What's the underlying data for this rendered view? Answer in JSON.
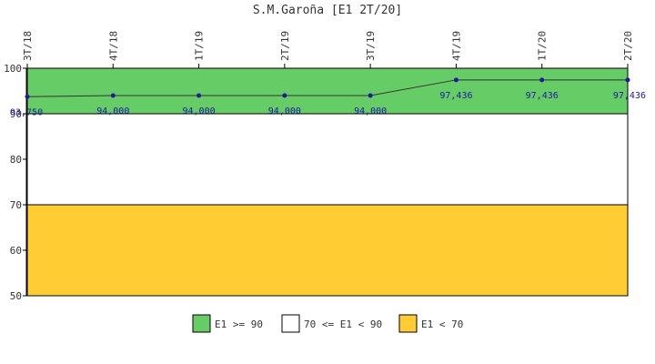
{
  "chart_data": {
    "type": "line",
    "title": "S.M.Garoña [E1 2T/20]",
    "xlabel": "",
    "ylabel": "",
    "ylim": [
      50,
      100
    ],
    "yticks": [
      50,
      60,
      70,
      80,
      90,
      100
    ],
    "categories": [
      "3T/18",
      "4T/18",
      "1T/19",
      "2T/19",
      "3T/19",
      "4T/19",
      "1T/20",
      "2T/20"
    ],
    "series": [
      {
        "values": [
          93.75,
          94.0,
          94.0,
          94.0,
          94.0,
          97.436,
          97.436,
          97.436
        ],
        "labels": [
          "93,750",
          "94,000",
          "94,000",
          "94,000",
          "94,000",
          "97,436",
          "97,436",
          "97,436"
        ],
        "color": "#1a1aa6"
      }
    ],
    "bands": [
      {
        "from": 90,
        "to": 100,
        "color": "#66cc66",
        "legend": "E1 >= 90"
      },
      {
        "from": 70,
        "to": 90,
        "color": "#ffffff",
        "legend": "70 <= E1 < 90"
      },
      {
        "from": 50,
        "to": 70,
        "color": "#ffcc33",
        "legend": "E1 < 70"
      }
    ],
    "legend_position": "bottom",
    "grid": false
  }
}
